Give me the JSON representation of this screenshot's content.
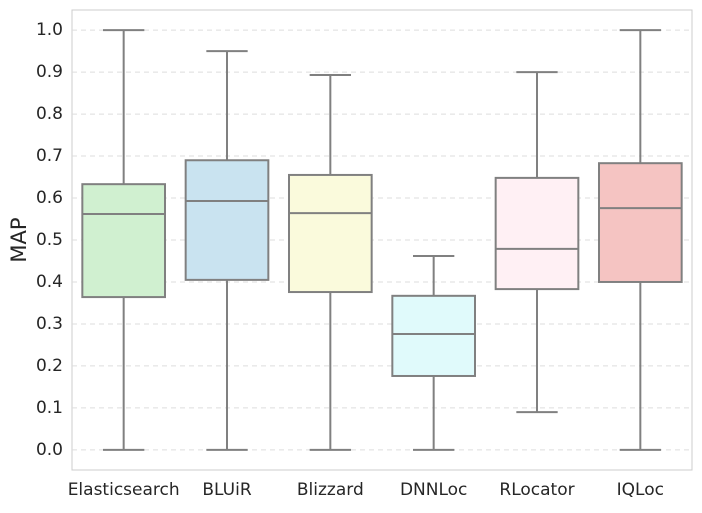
{
  "chart_data": {
    "type": "box",
    "ylabel": "MAP",
    "categories": [
      "Elasticsearch",
      "BLUiR",
      "Blizzard",
      "DNNLoc",
      "RLocator",
      "IQLoc"
    ],
    "colors": [
      "#d0f0d0",
      "#c9e3f0",
      "#fafadc",
      "#e0fafb",
      "#fff0f4",
      "#f5c4c2"
    ],
    "boxes": [
      {
        "min": 0,
        "q1": 0.364,
        "median": 0.562,
        "q3": 0.633,
        "max": 1.0
      },
      {
        "min": 0,
        "q1": 0.405,
        "median": 0.593,
        "q3": 0.69,
        "max": 0.95
      },
      {
        "min": 0,
        "q1": 0.376,
        "median": 0.564,
        "q3": 0.655,
        "max": 0.893
      },
      {
        "min": 0,
        "q1": 0.176,
        "median": 0.276,
        "q3": 0.367,
        "max": 0.462
      },
      {
        "min": 0.09,
        "q1": 0.383,
        "median": 0.479,
        "q3": 0.648,
        "max": 0.9
      },
      {
        "min": 0,
        "q1": 0.4,
        "median": 0.576,
        "q3": 0.683,
        "max": 1.0
      }
    ],
    "ylim": [
      -0.048,
      1.048
    ],
    "yticks": [
      {
        "value": 0,
        "label": "0.0"
      },
      0.1,
      0.2,
      0.3,
      0.4,
      0.5,
      0.6,
      0.7,
      0.8,
      0.9,
      {
        "value": 1,
        "label": "1.0"
      }
    ],
    "grid": true
  }
}
